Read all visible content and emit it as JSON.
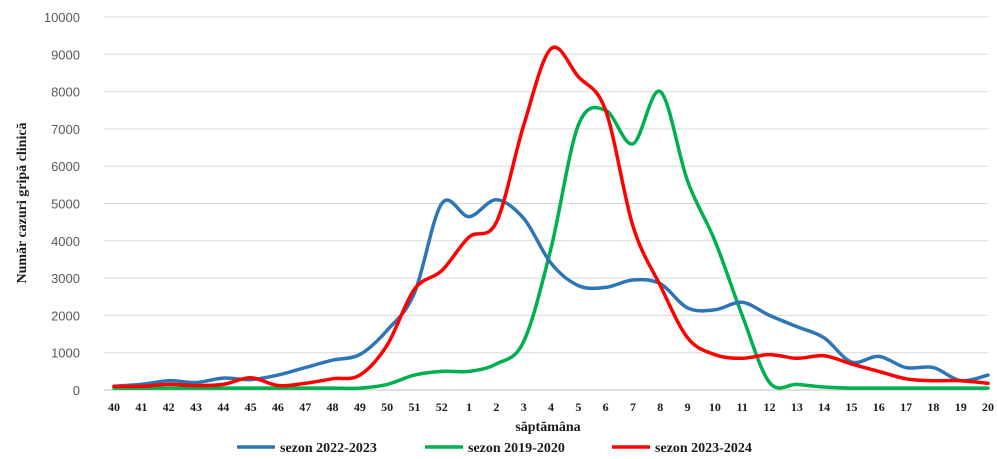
{
  "chart_data": {
    "type": "line",
    "xlabel": "săptămâna",
    "ylabel": "Număr cazuri gripă clinică",
    "ylim": [
      0,
      10000
    ],
    "yticks": [
      0,
      1000,
      2000,
      3000,
      4000,
      5000,
      6000,
      7000,
      8000,
      9000,
      10000
    ],
    "grid": true,
    "legend_position": "bottom",
    "categories": [
      "40",
      "41",
      "42",
      "43",
      "44",
      "45",
      "46",
      "47",
      "48",
      "49",
      "50",
      "51",
      "52",
      "1",
      "2",
      "3",
      "4",
      "5",
      "6",
      "7",
      "8",
      "9",
      "10",
      "11",
      "12",
      "13",
      "14",
      "15",
      "16",
      "17",
      "18",
      "19",
      "20"
    ],
    "series": [
      {
        "name": "sezon 2022-2023",
        "color": "#2e75b6",
        "values": [
          100,
          150,
          250,
          200,
          320,
          280,
          400,
          600,
          800,
          950,
          1600,
          2600,
          5000,
          4650,
          5100,
          4600,
          3400,
          2800,
          2750,
          2950,
          2850,
          2200,
          2150,
          2350,
          2000,
          1700,
          1400,
          750,
          900,
          600,
          600,
          250,
          400
        ]
      },
      {
        "name": "sezon 2019-2020",
        "color": "#00b050",
        "values": [
          50,
          50,
          50,
          50,
          50,
          50,
          50,
          50,
          50,
          50,
          150,
          400,
          500,
          500,
          700,
          1300,
          3800,
          7100,
          7500,
          6600,
          8000,
          5600,
          4000,
          2000,
          200,
          150,
          80,
          50,
          50,
          50,
          50,
          50,
          50
        ]
      },
      {
        "name": "sezon 2023-2024",
        "color": "#ff0000",
        "values": [
          100,
          100,
          150,
          120,
          150,
          330,
          120,
          180,
          300,
          400,
          1200,
          2700,
          3200,
          4100,
          4500,
          7100,
          9150,
          8400,
          7500,
          4400,
          2800,
          1400,
          950,
          850,
          950,
          850,
          920,
          700,
          500,
          300,
          250,
          250,
          180
        ]
      }
    ]
  }
}
